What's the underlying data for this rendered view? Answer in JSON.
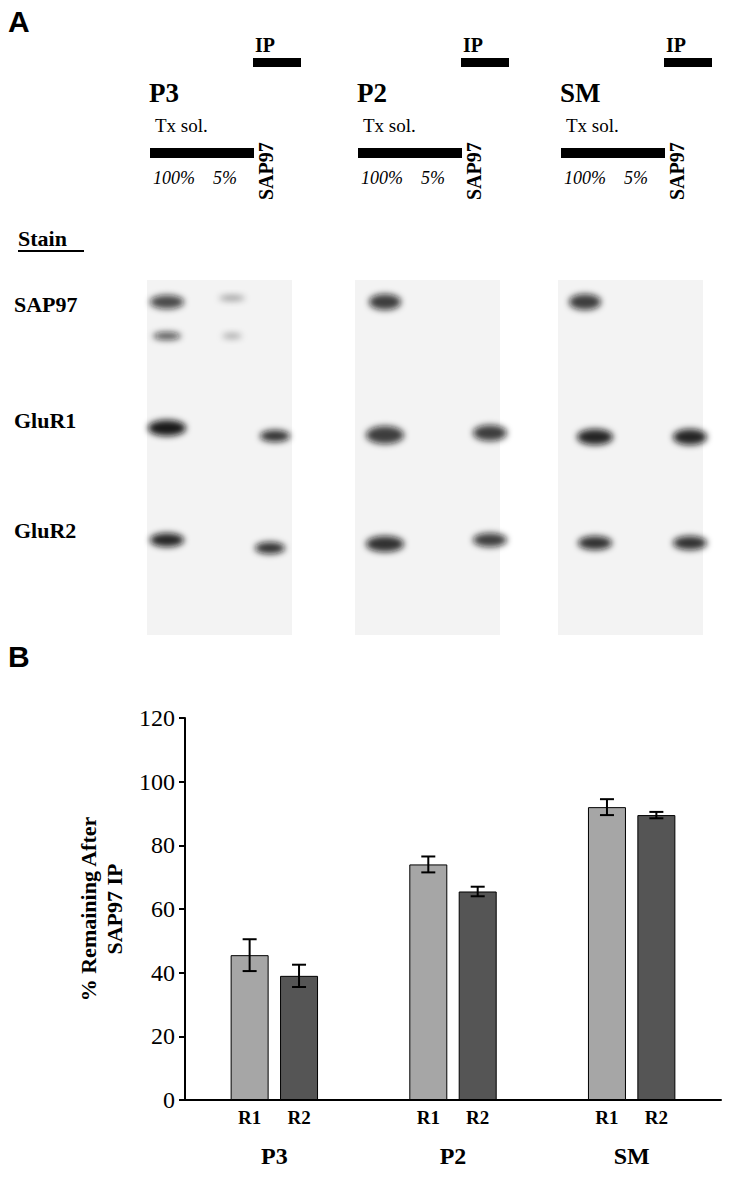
{
  "panel_a": {
    "label": "A",
    "stain_heading": "Stain",
    "rows": [
      "SAP97",
      "GluR1",
      "GluR2"
    ],
    "groups": [
      {
        "name": "P3",
        "lanes_heading": "Tx sol.",
        "lanes": [
          "100%",
          "5%"
        ],
        "ip_heading": "IP",
        "ip_lane": "SAP97"
      },
      {
        "name": "P2",
        "lanes_heading": "Tx sol.",
        "lanes": [
          "100%",
          "5%"
        ],
        "ip_heading": "IP",
        "ip_lane": "SAP97"
      },
      {
        "name": "SM",
        "lanes_heading": "Tx sol.",
        "lanes": [
          "100%",
          "5%"
        ],
        "ip_heading": "IP",
        "ip_lane": "SAP97"
      }
    ]
  },
  "panel_b_label": "B",
  "chart_data": {
    "type": "bar",
    "ylabel": "% Remaining After\nSAP97 IP",
    "categories": [
      "P3",
      "P2",
      "SM"
    ],
    "series": [
      {
        "name": "R1",
        "color": "#a6a6a6",
        "values": [
          45.5,
          74,
          92
        ],
        "errors": [
          5,
          2.5,
          2.5
        ]
      },
      {
        "name": "R2",
        "color": "#555555",
        "values": [
          39,
          65.5,
          89.5
        ],
        "errors": [
          3.5,
          1.5,
          1
        ]
      }
    ],
    "ylim": [
      0,
      120
    ],
    "yticks": [
      0,
      20,
      40,
      60,
      80,
      100,
      120
    ],
    "grid": false
  }
}
